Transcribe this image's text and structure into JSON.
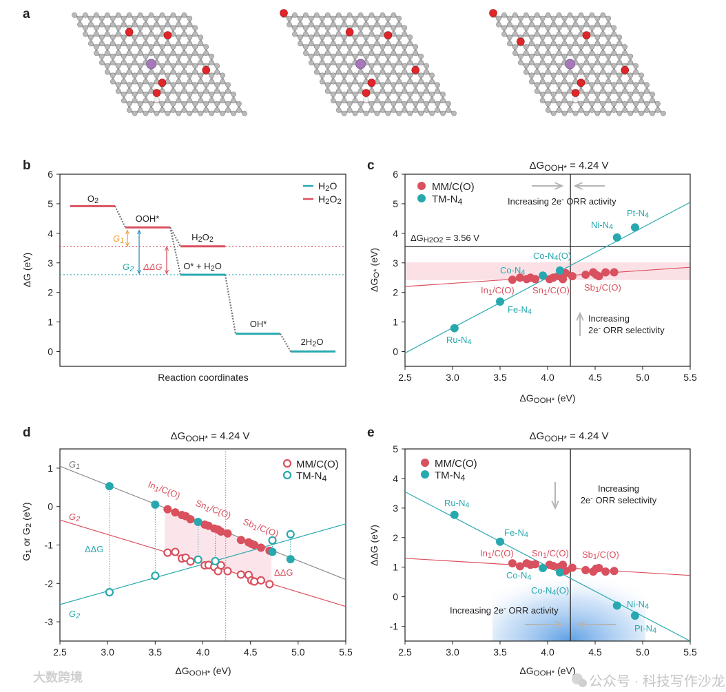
{
  "panel_labels": [
    "a",
    "b",
    "c",
    "d",
    "e"
  ],
  "watermarks": {
    "left": "大数跨境",
    "right": "公众号 · 科技写作沙龙"
  },
  "colors": {
    "mm": "#d9505e",
    "tm": "#27a8ae",
    "g1": "#8a8a8a",
    "band": "#fbe1e6",
    "blue": "#3f8ee0"
  },
  "chart_data": [
    {
      "type": "line",
      "panel": "b",
      "ylabel": "ΔG (eV)",
      "xlabel": "Reaction coordinates",
      "ylim": [
        -0.5,
        6
      ],
      "yticks": [
        "0",
        "1",
        "2",
        "3",
        "4",
        "5",
        "6"
      ],
      "legend": [
        {
          "name": "H_{2}O",
          "series": "H2O"
        },
        {
          "name": "H_{2}O_{2}",
          "series": "H2O2"
        }
      ],
      "levels": [
        {
          "label": "O_{2}",
          "value": 4.92,
          "series": "H2O2",
          "step": 0
        },
        {
          "label": "OOH*",
          "value": 4.2,
          "series": "H2O2",
          "step": 1
        },
        {
          "label": "H_{2}O_{2}",
          "value": 3.56,
          "series": "H2O2",
          "step": 2
        },
        {
          "label": "O* + H_{2}O",
          "value": 2.6,
          "series": "H2O",
          "step": 2
        },
        {
          "label": "OH*",
          "value": 0.6,
          "series": "H2O",
          "step": 3
        },
        {
          "label": "2H_{2}O",
          "value": 0.0,
          "series": "H2O",
          "step": 4
        }
      ],
      "reference_lines": [
        {
          "value": 3.56,
          "series": "H2O2"
        },
        {
          "value": 2.6,
          "series": "H2O"
        }
      ],
      "annotations": [
        "G_{1}",
        "G_{2}",
        "ΔΔG"
      ]
    },
    {
      "type": "scatter",
      "panel": "c",
      "title": "ΔG_{OOH*} = 4.24 V",
      "xlabel": "ΔG_{OOH*} (eV)",
      "ylabel": "ΔG_{O*} (eV)",
      "xlim": [
        2.5,
        5.5
      ],
      "ylim": [
        -0.5,
        6
      ],
      "xticks": [
        "2.5",
        "3.0",
        "3.5",
        "4.0",
        "4.5",
        "5.0",
        "5.5"
      ],
      "yticks": [
        "0",
        "1",
        "2",
        "3",
        "4",
        "5",
        "6"
      ],
      "legend": [
        "MM/C(O)",
        "TM-N_{4}"
      ],
      "vline": 4.24,
      "hline": 3.56,
      "hline_label": "ΔG_{H2O2} = 3.56 V",
      "band": [
        2.42,
        3.02
      ],
      "fits": {
        "mm": [
          [
            2.5,
            2.2
          ],
          [
            5.5,
            2.85
          ]
        ],
        "tm": [
          [
            2.5,
            -0.05
          ],
          [
            5.5,
            5.05
          ]
        ]
      },
      "series": [
        {
          "name": "MM/C(O)",
          "x": [
            3.63,
            3.71,
            3.78,
            3.82,
            3.87,
            4.02,
            4.06,
            4.12,
            4.16,
            4.19,
            4.26,
            4.4,
            4.48,
            4.51,
            4.54,
            4.61,
            4.7
          ],
          "y": [
            2.43,
            2.5,
            2.45,
            2.5,
            2.45,
            2.45,
            2.5,
            2.55,
            2.45,
            2.65,
            2.55,
            2.6,
            2.68,
            2.6,
            2.55,
            2.68,
            2.68
          ]
        },
        {
          "name": "TM-N_{4}",
          "x": [
            3.02,
            3.5,
            3.95,
            4.13,
            4.73,
            4.92
          ],
          "y": [
            0.79,
            1.69,
            2.57,
            2.74,
            3.86,
            4.2
          ]
        }
      ],
      "point_labels": [
        "Pt-N_{4}",
        "Ni-N_{4}",
        "Co-N_{4}(O)",
        "Co-N_{4}",
        "In_{1}/C(O)",
        "Sn_{1}/C(O)",
        "Sb_{1}/C(O)",
        "Fe-N_{4}",
        "Ru-N_{4}"
      ],
      "annotations": [
        "Increasing 2e^{-} ORR activity",
        "Increasing",
        "2e^{-} ORR selectivity"
      ]
    },
    {
      "type": "scatter",
      "panel": "d",
      "title": "ΔG_{OOH*} = 4.24 V",
      "xlabel": "ΔG_{OOH*} (eV)",
      "ylabel": "G_{1} or G_{2} (eV)",
      "xlim": [
        2.5,
        5.5
      ],
      "ylim": [
        -3.5,
        1.5
      ],
      "xticks": [
        "2.5",
        "3.0",
        "3.5",
        "4.0",
        "4.5",
        "5.0",
        "5.5"
      ],
      "yticks": [
        "-3",
        "-2",
        "-1",
        "0",
        "1"
      ],
      "legend": [
        "MM/C(O)",
        "TM-N_{4}"
      ],
      "vline": 4.24,
      "fits": {
        "g1": [
          [
            2.5,
            1.05
          ],
          [
            5.5,
            -1.9
          ]
        ],
        "mm_g2": [
          [
            2.5,
            -0.35
          ],
          [
            5.5,
            -2.6
          ]
        ],
        "tm_g2": [
          [
            2.5,
            -2.55
          ],
          [
            5.5,
            -0.45
          ]
        ]
      },
      "series": [
        {
          "name": "MM/C(O) G1",
          "x": [
            3.63,
            3.71,
            3.78,
            3.82,
            3.87,
            4.02,
            4.06,
            4.12,
            4.16,
            4.19,
            4.26,
            4.4,
            4.48,
            4.51,
            4.54,
            4.61,
            4.7
          ],
          "y": [
            -0.07,
            -0.15,
            -0.22,
            -0.25,
            -0.33,
            -0.47,
            -0.5,
            -0.57,
            -0.6,
            -0.65,
            -0.7,
            -0.87,
            -0.93,
            -0.97,
            -1.0,
            -1.07,
            -1.15
          ]
        },
        {
          "name": "MM/C(O) G2",
          "x": [
            3.63,
            3.71,
            3.78,
            3.82,
            3.87,
            4.02,
            4.06,
            4.12,
            4.16,
            4.19,
            4.26,
            4.4,
            4.48,
            4.51,
            4.54,
            4.61,
            4.7
          ],
          "y": [
            -1.2,
            -1.18,
            -1.35,
            -1.33,
            -1.43,
            -1.53,
            -1.52,
            -1.57,
            -1.68,
            -1.53,
            -1.68,
            -1.77,
            -1.78,
            -1.92,
            -1.95,
            -1.92,
            -2.02
          ]
        },
        {
          "name": "TM-N4 G1",
          "x": [
            3.02,
            3.5,
            3.95,
            4.13,
            4.73,
            4.92
          ],
          "y": [
            0.53,
            0.05,
            -0.4,
            -0.57,
            -1.18,
            -1.37
          ]
        },
        {
          "name": "TM-N4 G2",
          "x": [
            3.02,
            3.5,
            3.95,
            4.13,
            4.73,
            4.92
          ],
          "y": [
            -2.23,
            -1.8,
            -1.38,
            -1.42,
            -0.88,
            -0.72
          ]
        }
      ],
      "line_labels": [
        "G_{1}",
        "G_{2}",
        "G_{2}"
      ],
      "group_labels": [
        "In_{1}/C(O)",
        "Sn_{1}/C(O)",
        "Sb_{1}/C(O)"
      ],
      "annotations": [
        "ΔΔG",
        "ΔΔG"
      ]
    },
    {
      "type": "scatter",
      "panel": "e",
      "title": "ΔG_{OOH*} = 4.24 V",
      "xlabel": "ΔG_{OOH*} (eV)",
      "ylabel": "ΔΔG (eV)",
      "xlim": [
        2.5,
        5.5
      ],
      "ylim": [
        -1.5,
        5
      ],
      "xticks": [
        "2.5",
        "3.0",
        "3.5",
        "4.0",
        "4.5",
        "5.0",
        "5.5"
      ],
      "yticks": [
        "-1",
        "0",
        "1",
        "2",
        "3",
        "4",
        "5"
      ],
      "legend": [
        "MM/C(O)",
        "TM-N_{4}"
      ],
      "vline": 4.24,
      "fits": {
        "mm": [
          [
            2.5,
            1.3
          ],
          [
            5.5,
            0.72
          ]
        ],
        "tm": [
          [
            2.5,
            3.55
          ],
          [
            5.5,
            -1.5
          ]
        ]
      },
      "series": [
        {
          "name": "MM/C(O)",
          "x": [
            3.63,
            3.71,
            3.78,
            3.82,
            3.87,
            4.02,
            4.06,
            4.12,
            4.16,
            4.19,
            4.26,
            4.4,
            4.48,
            4.51,
            4.54,
            4.61,
            4.7
          ],
          "y": [
            1.13,
            1.03,
            1.13,
            1.08,
            1.1,
            1.08,
            1.04,
            1.0,
            1.08,
            0.88,
            0.98,
            0.9,
            0.85,
            0.95,
            0.97,
            0.85,
            0.87
          ]
        },
        {
          "name": "TM-N_{4}",
          "x": [
            3.02,
            3.5,
            3.95,
            4.13,
            4.73,
            4.92
          ],
          "y": [
            2.77,
            1.86,
            0.97,
            0.82,
            -0.3,
            -0.64
          ]
        }
      ],
      "point_labels": [
        "Ru-N_{4}",
        "Fe-N_{4}",
        "In_{1}/C(O)",
        "Sn_{1}/C(O)",
        "Sb_{1}/C(O)",
        "Co-N_{4}",
        "Co-N_{4}(O)",
        "Ni-N_{4}",
        "Pt-N_{4}"
      ],
      "annotations": [
        "Increasing",
        "2e^{-} ORR selectivity",
        "Increasing 2e^{-} ORR activity"
      ]
    }
  ]
}
